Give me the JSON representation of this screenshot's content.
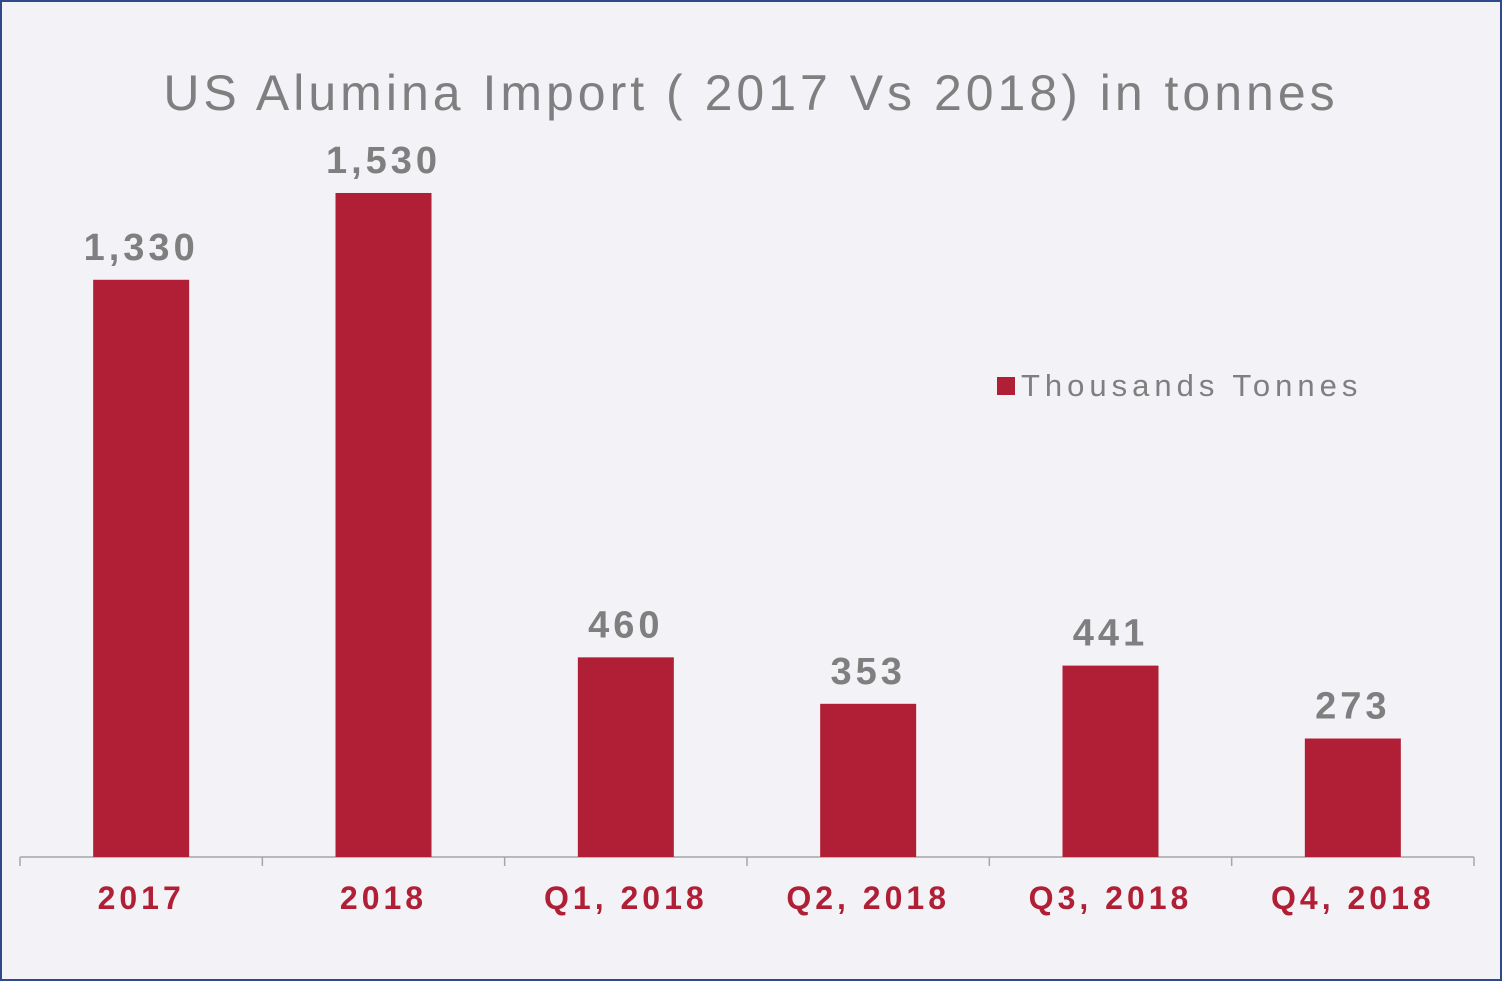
{
  "chart_data": {
    "type": "bar",
    "title": "US Alumina Import ( 2017 Vs 2018) in tonnes",
    "categories": [
      "2017",
      "2018",
      "Q1, 2018",
      "Q2, 2018",
      "Q3, 2018",
      "Q4, 2018"
    ],
    "series": [
      {
        "name": "Thousands Tonnes",
        "values": [
          1330,
          1530,
          460,
          353,
          441,
          273
        ],
        "data_labels": [
          "1,330",
          "1,530",
          "460",
          "353",
          "441",
          "273"
        ]
      }
    ],
    "ylim": [
      0,
      2200
    ],
    "grid": false,
    "legend_position": "right",
    "colors": {
      "bar": "#b01f35",
      "title": "#7f7f7f",
      "data_label": "#7f7f7f",
      "tick_label": "#b01f35",
      "axis": "#a6a6a6",
      "background": "#f3f3f7",
      "border": "#2e4a8c"
    }
  }
}
